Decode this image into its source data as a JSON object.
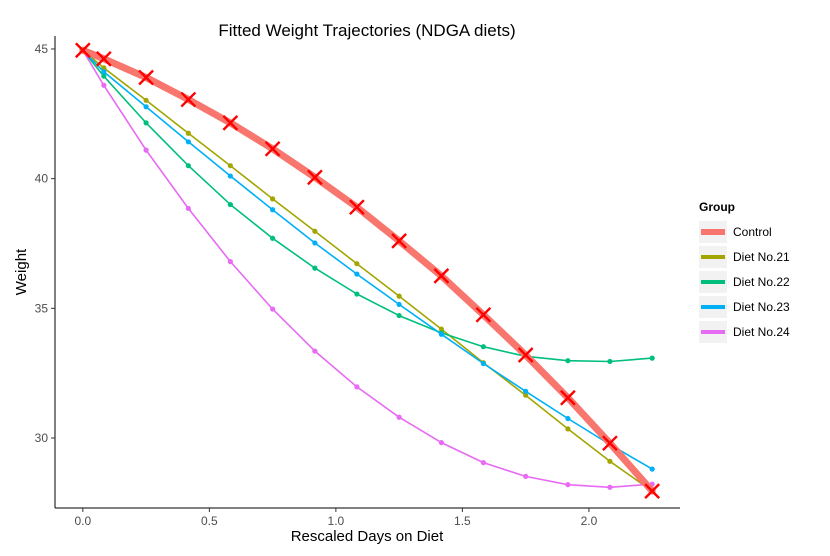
{
  "chart_data": {
    "type": "line",
    "title": "Fitted Weight Trajectories (NDGA diets)",
    "xlabel": "Rescaled Days on Diet",
    "ylabel": "Weight",
    "xlim": [
      -0.11,
      2.36
    ],
    "ylim": [
      27.3,
      45.5
    ],
    "xticks": [
      0.0,
      0.5,
      1.0,
      1.5,
      2.0
    ],
    "xtick_labels": [
      "0.0",
      "0.5",
      "1.0",
      "1.5",
      "2.0"
    ],
    "yticks": [
      30,
      35,
      40,
      45
    ],
    "ytick_labels": [
      "30",
      "35",
      "40",
      "45"
    ],
    "grid": false,
    "legend": {
      "title": "Group",
      "position": "right"
    },
    "x": [
      0.0,
      0.083,
      0.25,
      0.417,
      0.583,
      0.75,
      0.917,
      1.083,
      1.25,
      1.417,
      1.583,
      1.75,
      1.917,
      2.083,
      2.25
    ],
    "series": [
      {
        "name": "Control",
        "color": "#f8766d",
        "style": "thick-line-with-x-markers",
        "values": [
          44.95,
          44.62,
          43.9,
          43.05,
          42.15,
          41.15,
          40.05,
          38.9,
          37.6,
          36.25,
          34.75,
          33.2,
          31.55,
          29.8,
          27.95
        ]
      },
      {
        "name": "Diet No.21",
        "color": "#a3a500",
        "style": "line-with-points",
        "values": [
          44.95,
          44.27,
          43.02,
          41.75,
          40.5,
          39.22,
          37.97,
          36.72,
          35.47,
          34.2,
          32.9,
          31.65,
          30.35,
          29.1,
          27.95
        ]
      },
      {
        "name": "Diet No.22",
        "color": "#00bf7d",
        "style": "line-with-points",
        "values": [
          44.95,
          43.95,
          42.15,
          40.5,
          39.0,
          37.7,
          36.55,
          35.55,
          34.72,
          34.05,
          33.52,
          33.15,
          32.98,
          32.95,
          33.08
        ]
      },
      {
        "name": "Diet No.23",
        "color": "#00b0f6",
        "style": "line-with-points",
        "values": [
          44.95,
          44.12,
          42.77,
          41.42,
          40.1,
          38.8,
          37.52,
          36.32,
          35.15,
          34.0,
          32.87,
          31.8,
          30.75,
          29.75,
          28.8
        ]
      },
      {
        "name": "Diet No.24",
        "color": "#e76bf3",
        "style": "line-with-points",
        "values": [
          44.95,
          43.6,
          41.1,
          38.85,
          36.8,
          34.97,
          33.35,
          31.97,
          30.8,
          29.82,
          29.05,
          28.52,
          28.2,
          28.1,
          28.22
        ]
      }
    ]
  }
}
